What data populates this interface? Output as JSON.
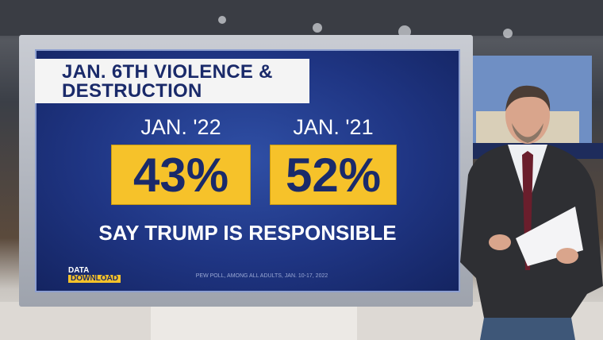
{
  "graphic": {
    "title_line1": "JAN. 6TH VIOLENCE &",
    "title_line2": "DESTRUCTION",
    "columns": [
      {
        "label": "JAN. '22",
        "value": "43%"
      },
      {
        "label": "JAN. '21",
        "value": "52%"
      }
    ],
    "caption": "SAY TRUMP IS RESPONSIBLE",
    "logo_line1": "DATA",
    "logo_line2": "DOWNLOAD",
    "source": "PEW POLL, AMONG ALL ADULTS, JAN. 10-17, 2022"
  }
}
